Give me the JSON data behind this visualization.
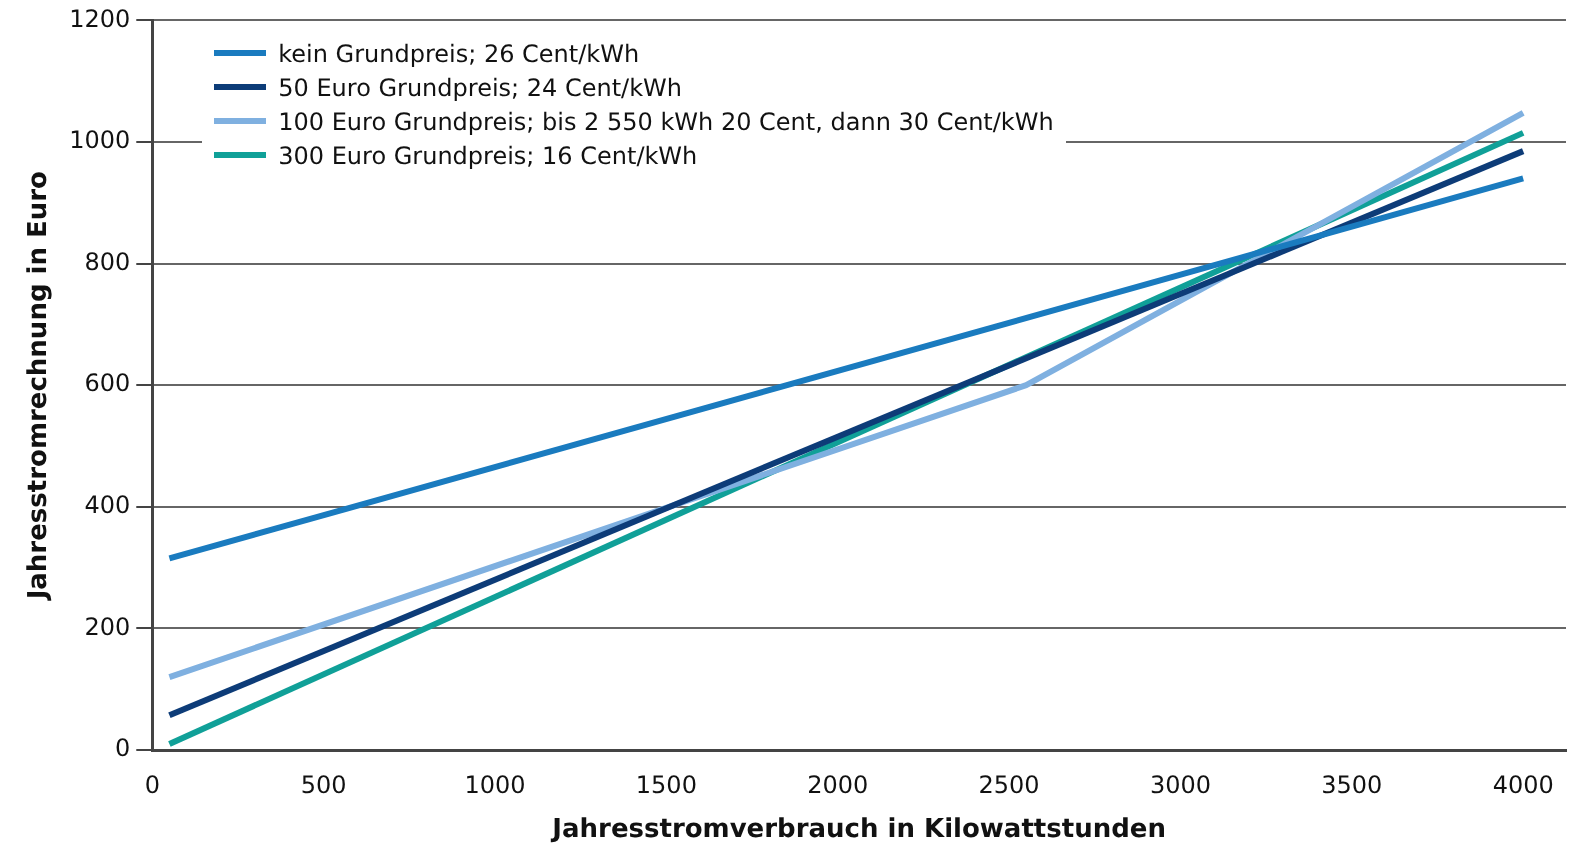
{
  "chart_data": {
    "type": "line",
    "xlabel": "Jahresstromverbrauch in Kilowattstunden",
    "ylabel": "Jahresstromrechnung in Euro",
    "xlim": [
      0,
      4125
    ],
    "xticks": [
      0,
      500,
      1000,
      1500,
      2000,
      2500,
      3000,
      3500,
      4000
    ],
    "ylim": [
      0,
      1200
    ],
    "yticks": [
      0,
      200,
      400,
      600,
      800,
      1000,
      1200
    ],
    "grid": "y",
    "legend": "top left",
    "marker": "none",
    "line_style": "solid",
    "series": [
      {
        "name": "kein Grundpreis; 26 Cent/kWh",
        "color": "#1a7bbf",
        "x": [
          50,
          4000
        ],
        "values": [
          315,
          940
        ]
      },
      {
        "name": "50 Euro Grundpreis; 24 Cent/kWh",
        "color": "#0d3c78",
        "x": [
          50,
          4000
        ],
        "values": [
          57,
          985
        ]
      },
      {
        "name": "100 Euro Grundpreis; bis 2 550 kWh 20 Cent, dann 30 Cent/kWh",
        "color": "#7fb0e0",
        "x": [
          50,
          2550,
          4000
        ],
        "values": [
          120,
          600,
          1048
        ]
      },
      {
        "name": "300 Euro Grundpreis; 16 Cent/kWh",
        "color": "#10a098",
        "x": [
          50,
          4000
        ],
        "values": [
          10,
          1015
        ]
      }
    ]
  }
}
